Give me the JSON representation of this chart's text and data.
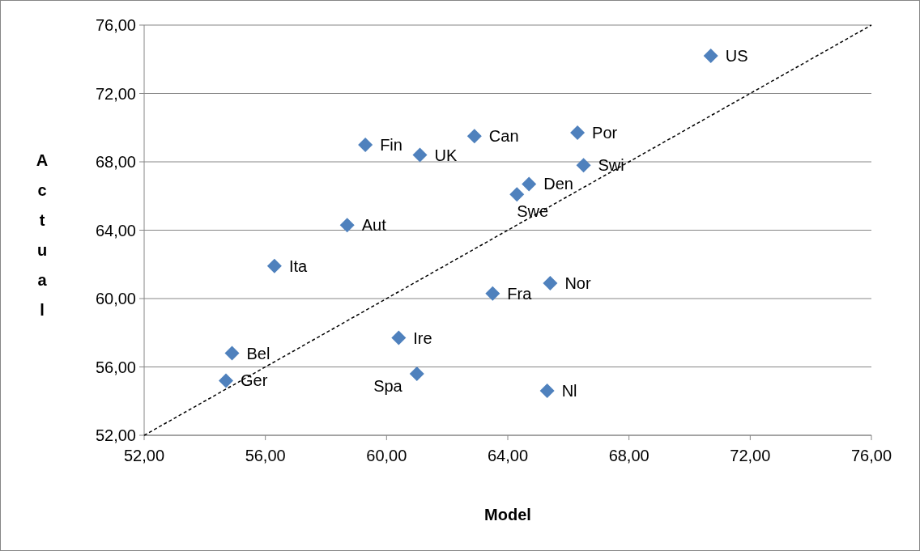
{
  "chart_data": {
    "type": "scatter",
    "xlabel": "Model",
    "ylabel": "Actual",
    "xlim": [
      52,
      76
    ],
    "ylim": [
      52,
      76
    ],
    "xticks": [
      {
        "value": 52,
        "label": "52,00"
      },
      {
        "value": 56,
        "label": "56,00"
      },
      {
        "value": 60,
        "label": "60,00"
      },
      {
        "value": 64,
        "label": "64,00"
      },
      {
        "value": 68,
        "label": "68,00"
      },
      {
        "value": 72,
        "label": "72,00"
      },
      {
        "value": 76,
        "label": "76,00"
      }
    ],
    "yticks": [
      {
        "value": 52,
        "label": "52,00"
      },
      {
        "value": 56,
        "label": "56,00"
      },
      {
        "value": 60,
        "label": "60,00"
      },
      {
        "value": 64,
        "label": "64,00"
      },
      {
        "value": 68,
        "label": "68,00"
      },
      {
        "value": 72,
        "label": "72,00"
      },
      {
        "value": 76,
        "label": "76,00"
      }
    ],
    "grid": "y",
    "series": [
      {
        "color": "#4f81bd",
        "marker": "diamond",
        "x": [
          70.7,
          59.3,
          61.1,
          62.9,
          66.3,
          66.5,
          64.7,
          64.3,
          58.7,
          56.3,
          63.5,
          65.4,
          60.4,
          54.9,
          54.7,
          61.0,
          65.3
        ],
        "values": [
          74.2,
          69.0,
          68.4,
          69.5,
          69.7,
          67.8,
          66.7,
          66.1,
          64.3,
          61.9,
          60.3,
          60.9,
          57.7,
          56.8,
          55.2,
          55.6,
          54.6
        ],
        "value_labels": [
          "US",
          "Fin",
          "UK",
          "Can",
          "Por",
          "Swi",
          "Den",
          "Swe",
          "Aut",
          "Ita",
          "Fra",
          "Nor",
          "Ire",
          "Bel",
          "Ger",
          "Spa",
          "Nl"
        ]
      },
      {
        "type": "line",
        "color": "#000000",
        "line_style": "dashed",
        "marker": "none",
        "x": [
          52,
          76
        ],
        "values": [
          52,
          76
        ]
      }
    ]
  }
}
